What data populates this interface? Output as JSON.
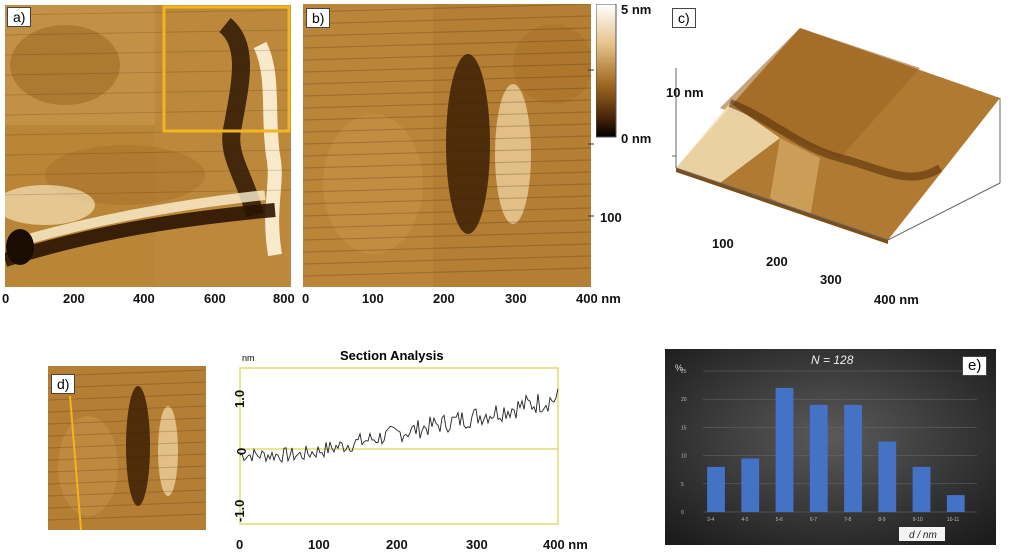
{
  "panel_a": {
    "label": "a)",
    "x_ticks": [
      "0",
      "200",
      "400",
      "600",
      "800"
    ]
  },
  "panel_b": {
    "label": "b)",
    "x_ticks": [
      "0",
      "100",
      "200",
      "300",
      "400 nm"
    ],
    "y_tick": "100",
    "colorbar": {
      "top": "5 nm",
      "bottom": "0 nm"
    }
  },
  "panel_c": {
    "label": "c)",
    "z_label": "10 nm",
    "x_ticks": [
      "100",
      "200",
      "300",
      "400 nm"
    ]
  },
  "panel_d": {
    "label": "d)"
  },
  "section": {
    "title": "Section Analysis",
    "unit": "nm",
    "y_ticks": [
      "1.0",
      "0",
      "-1.0"
    ],
    "x_ticks": [
      "0",
      "100",
      "200",
      "300",
      "400 nm"
    ]
  },
  "panel_e": {
    "label": "e)"
  },
  "chart_data": [
    {
      "type": "bar",
      "title": "N = 128",
      "xlabel": "d / nm",
      "ylabel": "%",
      "categories": [
        "3-4",
        "4-5",
        "5-6",
        "6-7",
        "7-8",
        "8-9",
        "9-10",
        "10-11"
      ],
      "values": [
        8,
        9.5,
        22,
        19,
        19,
        12.5,
        8,
        3
      ],
      "yticks": [
        "25",
        "20",
        "15",
        "10",
        "5",
        "0"
      ],
      "ylim": [
        0,
        25
      ],
      "color": "#4472c4"
    },
    {
      "type": "line",
      "title": "Section Analysis",
      "xlabel": "nm",
      "ylabel": "nm",
      "xlim": [
        0,
        400
      ],
      "ylim": [
        -1.5,
        1.5
      ]
    }
  ]
}
